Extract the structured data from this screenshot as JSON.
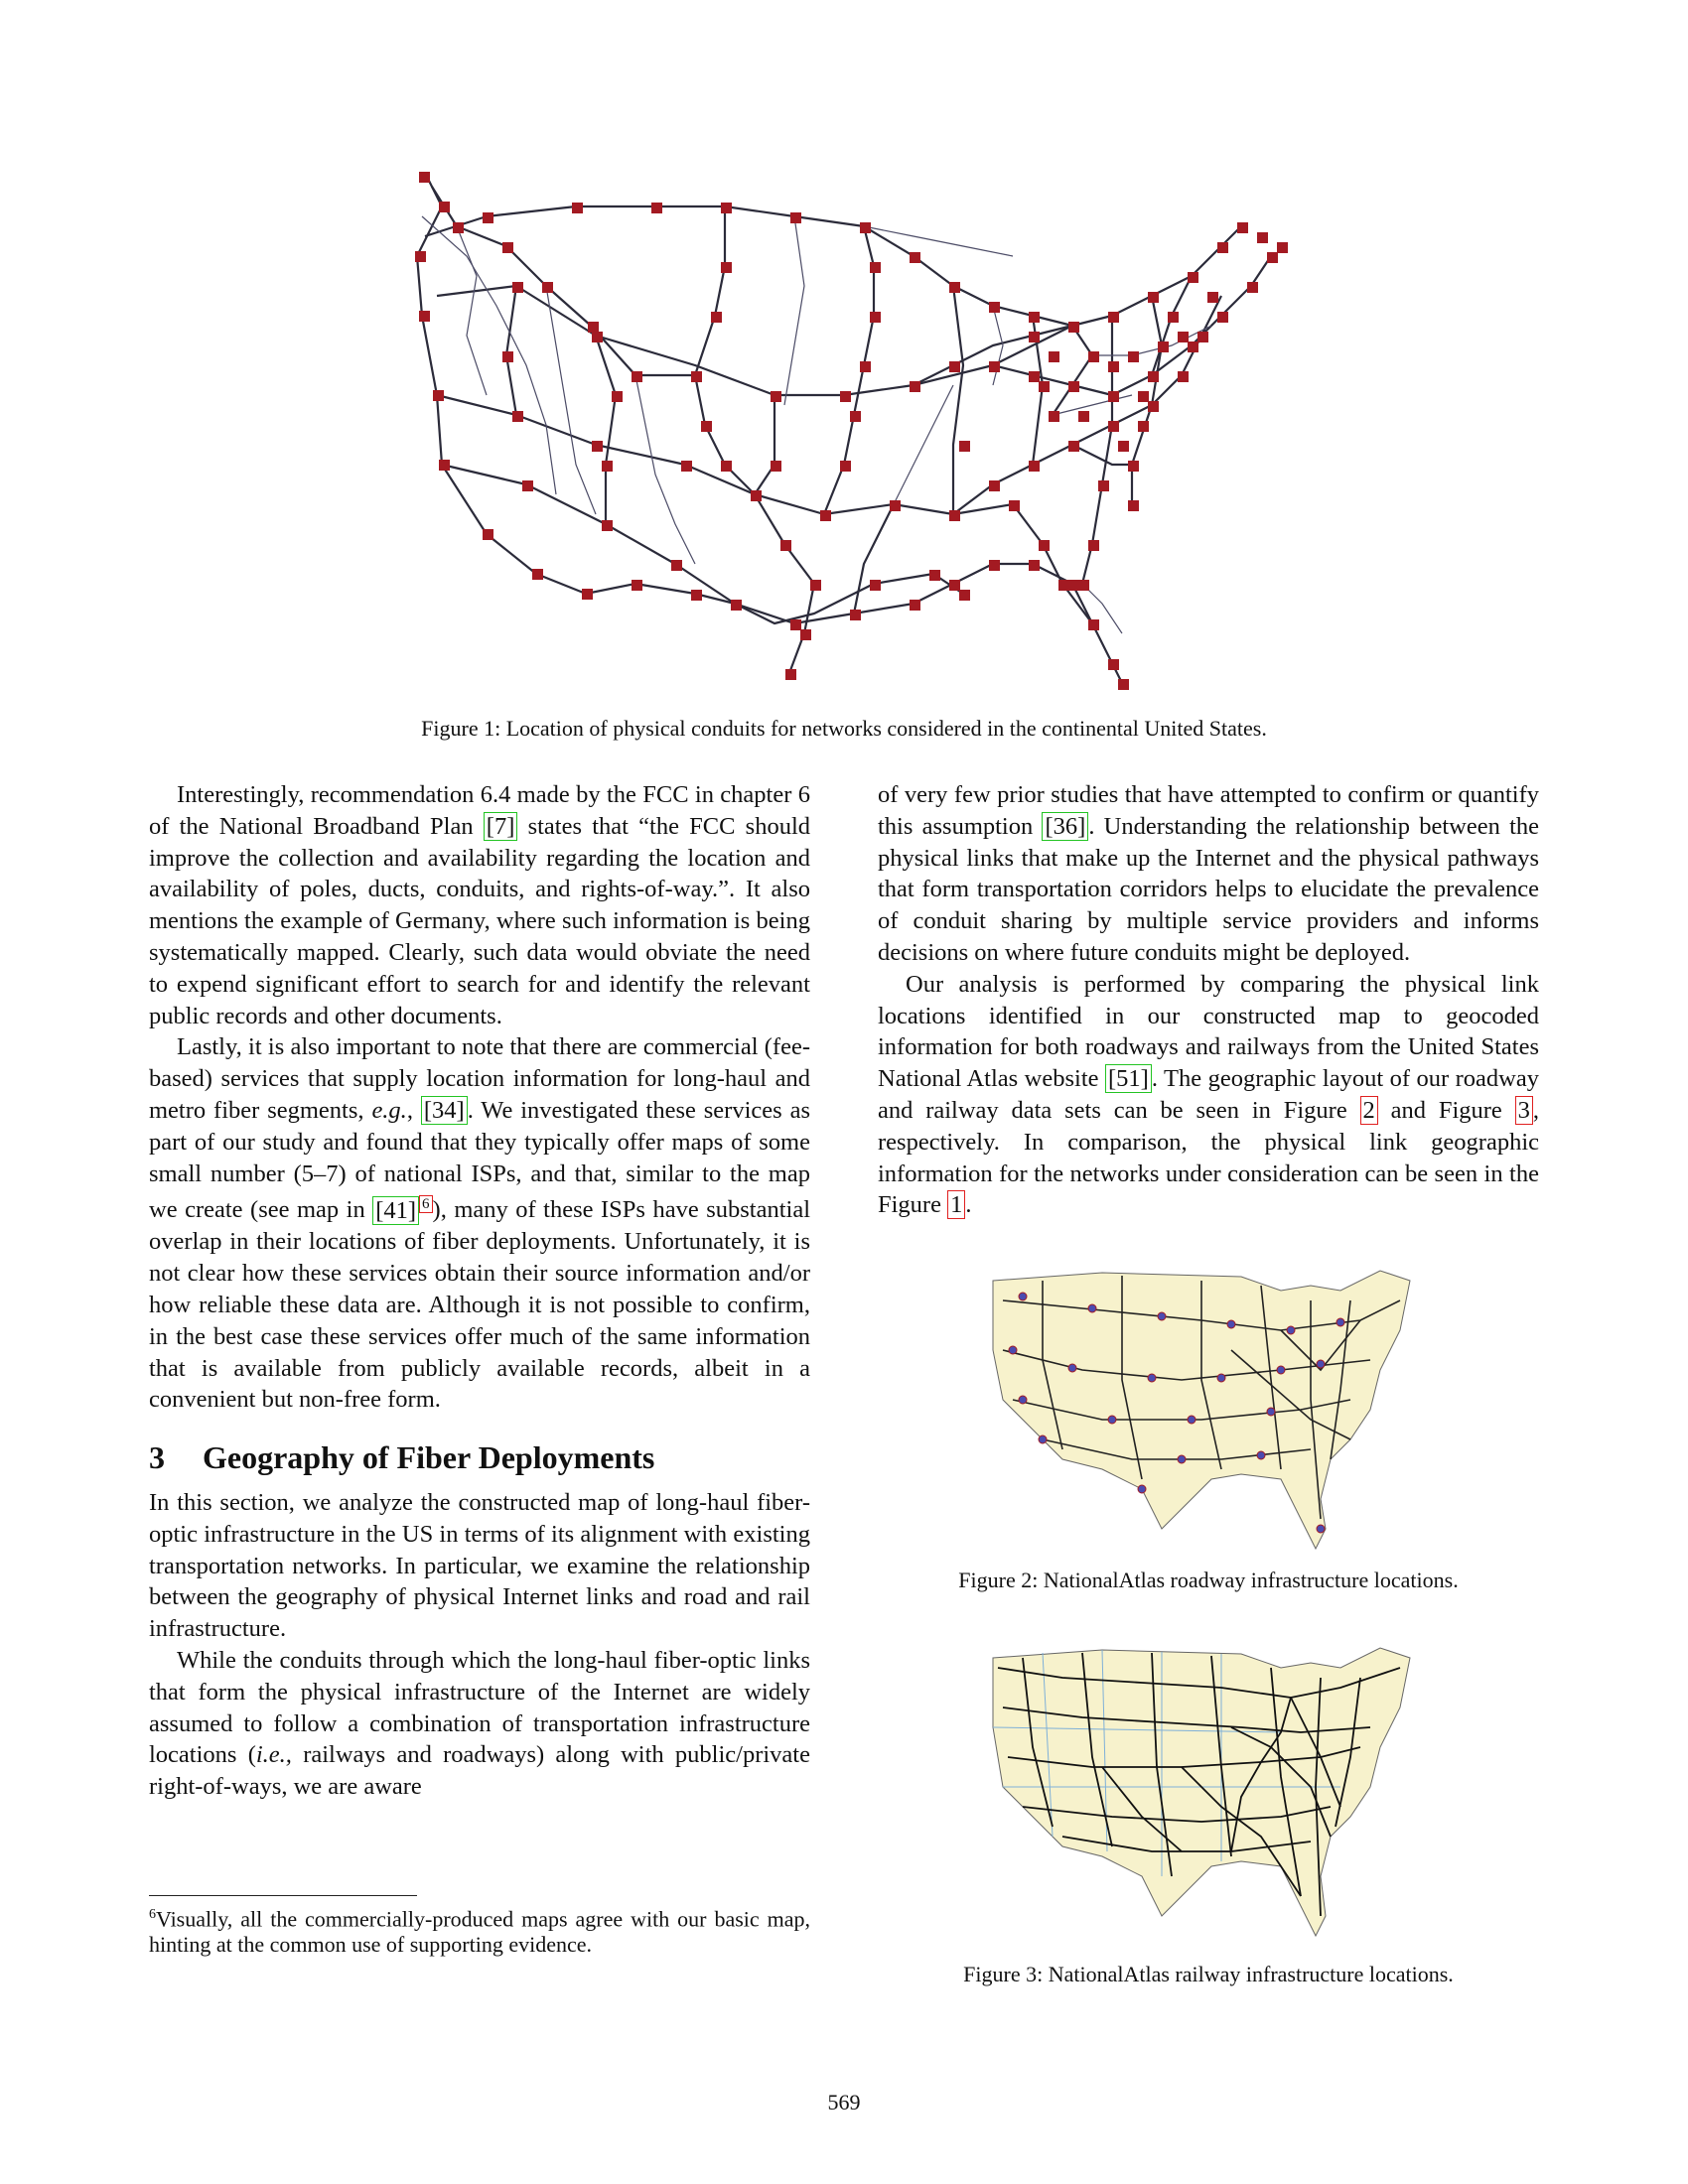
{
  "figure1": {
    "caption": "Figure 1: Location of physical conduits for networks considered in the continental United States."
  },
  "left_column": {
    "p1_a": "Interestingly, recommendation 6.4 made by the FCC in chapter 6 of the National Broadband Plan ",
    "p1_ref": "[7]",
    "p1_b": " states that “the FCC should improve the collection and availability regarding the location and availability of poles, ducts, conduits, and rights-of-way.”. It also mentions the example of Germany, where such information is being systematically mapped. Clearly, such data would obviate the need to expend significant effort to search for and identify the relevant public records and other documents.",
    "p2_a": "Lastly, it is also important to note that there are commercial (fee-based) services that supply location information for long-haul and metro fiber segments, ",
    "p2_eg": "e.g.",
    "p2_b": ", ",
    "p2_ref1": "[34]",
    "p2_c": ". We investigated these services as part of our study and found that they typically offer maps of some small number (5–7) of national ISPs, and that, similar to the map we create (see map in ",
    "p2_ref2": "[41]",
    "p2_fnmark": "6",
    "p2_d": "), many of these ISPs have substantial overlap in their locations of fiber deployments. Unfortunately, it is not clear how these services obtain their source information and/or how reliable these data are. Although it is not possible to confirm, in the best case these services offer much of the same information that is available from publicly available records, albeit in a convenient but non-free form.",
    "section_number": "3",
    "section_title": "Geography of Fiber Deployments",
    "p3": "In this section, we analyze the constructed map of long-haul fiber-optic infrastructure in the US in terms of its alignment with existing transportation networks. In particular, we examine the relationship between the geography of physical Internet links and road and rail infrastructure.",
    "p4_a": "While the conduits through which the long-haul fiber-optic links that form the physical infrastructure of the Internet are widely assumed to follow a combination of transportation infrastructure locations (",
    "p4_ie": "i.e.,",
    "p4_b": " railways and roadways) along with public/private right-of-ways, we are aware"
  },
  "footnote": {
    "mark": "6",
    "text": "Visually, all the commercially-produced maps agree with our basic map, hinting at the common use of supporting evidence."
  },
  "right_column": {
    "p1_a": "of very few prior studies that have attempted to confirm or quantify this assumption ",
    "p1_ref": "[36]",
    "p1_b": ". Understanding the relationship between the physical links that make up the Internet and the physical pathways that form transportation corridors helps to elucidate the prevalence of conduit sharing by multiple service providers and informs decisions on where future conduits might be deployed.",
    "p2_a": "Our analysis is performed by comparing the physical link locations identified in our constructed map to geocoded information for both roadways and railways from the United States National Atlas website ",
    "p2_ref": "[51]",
    "p2_b": ". The geographic layout of our roadway and railway data sets can be seen in Figure ",
    "p2_fig2": "2",
    "p2_c": " and Figure ",
    "p2_fig3": "3",
    "p2_d": ", respectively. In comparison, the physical link geographic information for the networks under consideration can be seen in the Figure ",
    "p2_fig1": "1",
    "p2_e": "."
  },
  "figure2": {
    "caption": "Figure 2: NationalAtlas roadway infrastructure locations."
  },
  "figure3": {
    "caption": "Figure 3: NationalAtlas railway infrastructure locations."
  },
  "page_number": "569",
  "colors": {
    "conduit_marker": "#a31a22",
    "map_fill": "#f7f2cc",
    "line": "#222222"
  }
}
